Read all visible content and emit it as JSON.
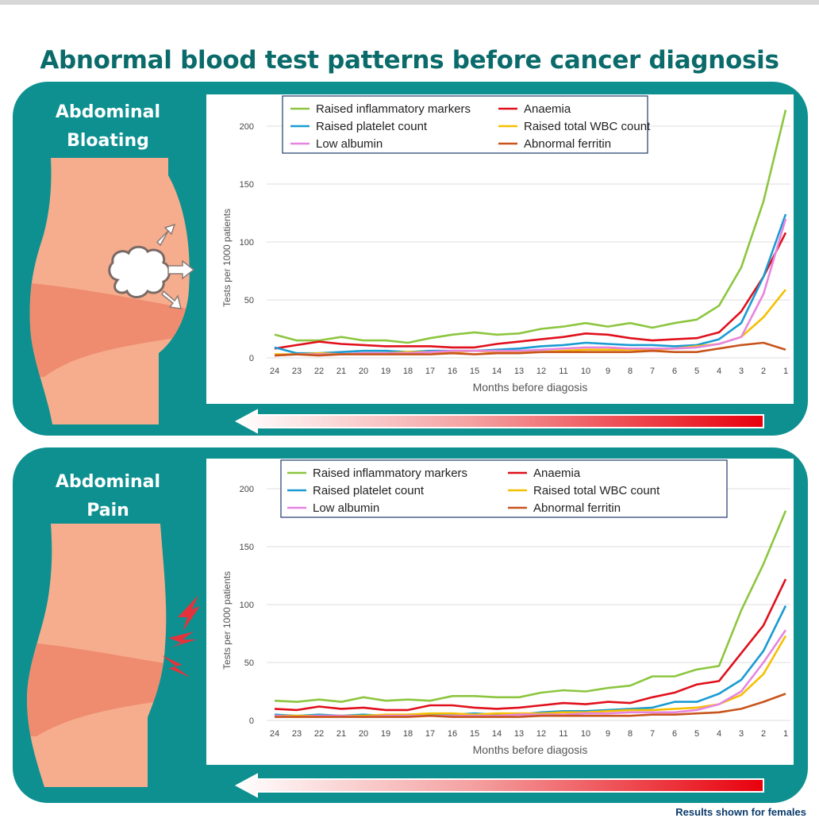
{
  "page": {
    "title": "Abnormal blood test patterns before cancer diagnosis",
    "footnote": "Results shown for females"
  },
  "colors": {
    "teal_panel": "#0e9090",
    "title_teal": "#0b6b6b",
    "skin": "#f6ad8d",
    "skin_band": "#ef8c6f",
    "raised_inflammatory_markers": "#8cc63f",
    "anaemia": "#e0101c",
    "raised_platelet_count": "#1a9bd2",
    "raised_total_wbc_count": "#f5c000",
    "low_albumin": "#e685e0",
    "abnormal_ferritin": "#c8541c"
  },
  "panels": [
    {
      "symptom_line1": "Abdominal",
      "symptom_line2": "Bloating",
      "illustration": "bloating-cloud-icon"
    },
    {
      "symptom_line1": "Abdominal",
      "symptom_line2": "Pain",
      "illustration": "pain-lightning-icon"
    }
  ],
  "chart_data": [
    {
      "type": "line",
      "title": "",
      "xlabel": "Months before diagosis",
      "ylabel": "Tests per 1000 patients",
      "x": [
        24,
        23,
        22,
        21,
        20,
        19,
        18,
        17,
        16,
        15,
        14,
        13,
        12,
        11,
        10,
        9,
        8,
        7,
        6,
        5,
        4,
        3,
        2,
        1
      ],
      "ylim": [
        0,
        200
      ],
      "yticks": [
        0,
        50,
        100,
        150,
        200
      ],
      "grid": true,
      "legend": "top",
      "series": [
        {
          "name": "Raised inflammatory markers",
          "color": "#8cc63f",
          "values": [
            20,
            15,
            15,
            18,
            15,
            15,
            13,
            17,
            20,
            22,
            20,
            21,
            25,
            27,
            30,
            27,
            30,
            26,
            30,
            33,
            45,
            78,
            135,
            214
          ]
        },
        {
          "name": "Anaemia",
          "color": "#e0101c",
          "values": [
            8,
            11,
            14,
            12,
            11,
            10,
            10,
            10,
            9,
            9,
            12,
            14,
            16,
            18,
            21,
            20,
            17,
            15,
            16,
            17,
            22,
            40,
            70,
            108
          ]
        },
        {
          "name": "Raised platelet count",
          "color": "#1a9bd2",
          "values": [
            9,
            4,
            4,
            5,
            6,
            6,
            5,
            6,
            6,
            6,
            7,
            8,
            10,
            11,
            13,
            12,
            11,
            11,
            10,
            11,
            16,
            30,
            70,
            124
          ]
        },
        {
          "name": "Raised total WBC count",
          "color": "#f5c000",
          "values": [
            3,
            3,
            4,
            3,
            4,
            4,
            5,
            5,
            5,
            6,
            5,
            5,
            5,
            6,
            7,
            7,
            7,
            7,
            8,
            10,
            12,
            18,
            35,
            59
          ]
        },
        {
          "name": "Low albumin",
          "color": "#e685e0",
          "values": [
            2,
            3,
            3,
            3,
            4,
            4,
            4,
            5,
            6,
            6,
            6,
            6,
            7,
            8,
            9,
            9,
            8,
            8,
            8,
            9,
            12,
            18,
            55,
            120
          ]
        },
        {
          "name": "Abnormal ferritin",
          "color": "#c8541c",
          "values": [
            2,
            3,
            2,
            3,
            3,
            3,
            3,
            3,
            4,
            3,
            4,
            4,
            5,
            5,
            5,
            5,
            5,
            6,
            5,
            5,
            8,
            11,
            13,
            7
          ]
        }
      ]
    },
    {
      "type": "line",
      "title": "",
      "xlabel": "Months before diagosis",
      "ylabel": "Tests per 1000 patients",
      "x": [
        24,
        23,
        22,
        21,
        20,
        19,
        18,
        17,
        16,
        15,
        14,
        13,
        12,
        11,
        10,
        9,
        8,
        7,
        6,
        5,
        4,
        3,
        2,
        1
      ],
      "ylim": [
        0,
        200
      ],
      "yticks": [
        0,
        50,
        100,
        150,
        200
      ],
      "grid": true,
      "legend": "top",
      "series": [
        {
          "name": "Raised inflammatory markers",
          "color": "#8cc63f",
          "values": [
            17,
            16,
            18,
            16,
            20,
            17,
            18,
            17,
            21,
            21,
            20,
            20,
            24,
            26,
            25,
            28,
            30,
            38,
            38,
            44,
            47,
            95,
            135,
            181
          ]
        },
        {
          "name": "Anaemia",
          "color": "#e0101c",
          "values": [
            10,
            9,
            12,
            10,
            11,
            9,
            9,
            13,
            13,
            11,
            10,
            11,
            13,
            15,
            14,
            16,
            15,
            20,
            24,
            31,
            34,
            58,
            82,
            122
          ]
        },
        {
          "name": "Raised platelet count",
          "color": "#1a9bd2",
          "values": [
            5,
            4,
            5,
            4,
            5,
            4,
            5,
            5,
            5,
            6,
            5,
            5,
            7,
            8,
            8,
            9,
            10,
            11,
            16,
            16,
            23,
            35,
            60,
            99
          ]
        },
        {
          "name": "Raised total WBC count",
          "color": "#f5c000",
          "values": [
            4,
            4,
            4,
            4,
            4,
            5,
            5,
            6,
            6,
            5,
            6,
            6,
            6,
            7,
            7,
            8,
            9,
            9,
            10,
            11,
            14,
            22,
            40,
            73
          ]
        },
        {
          "name": "Low albumin",
          "color": "#e685e0",
          "values": [
            4,
            3,
            4,
            4,
            3,
            4,
            4,
            4,
            4,
            4,
            4,
            5,
            5,
            5,
            6,
            6,
            7,
            7,
            7,
            9,
            14,
            25,
            50,
            78
          ]
        },
        {
          "name": "Abnormal ferritin",
          "color": "#c8541c",
          "values": [
            3,
            3,
            3,
            3,
            3,
            3,
            3,
            4,
            3,
            3,
            3,
            3,
            4,
            4,
            4,
            4,
            4,
            5,
            5,
            6,
            7,
            10,
            16,
            23
          ]
        }
      ]
    }
  ]
}
